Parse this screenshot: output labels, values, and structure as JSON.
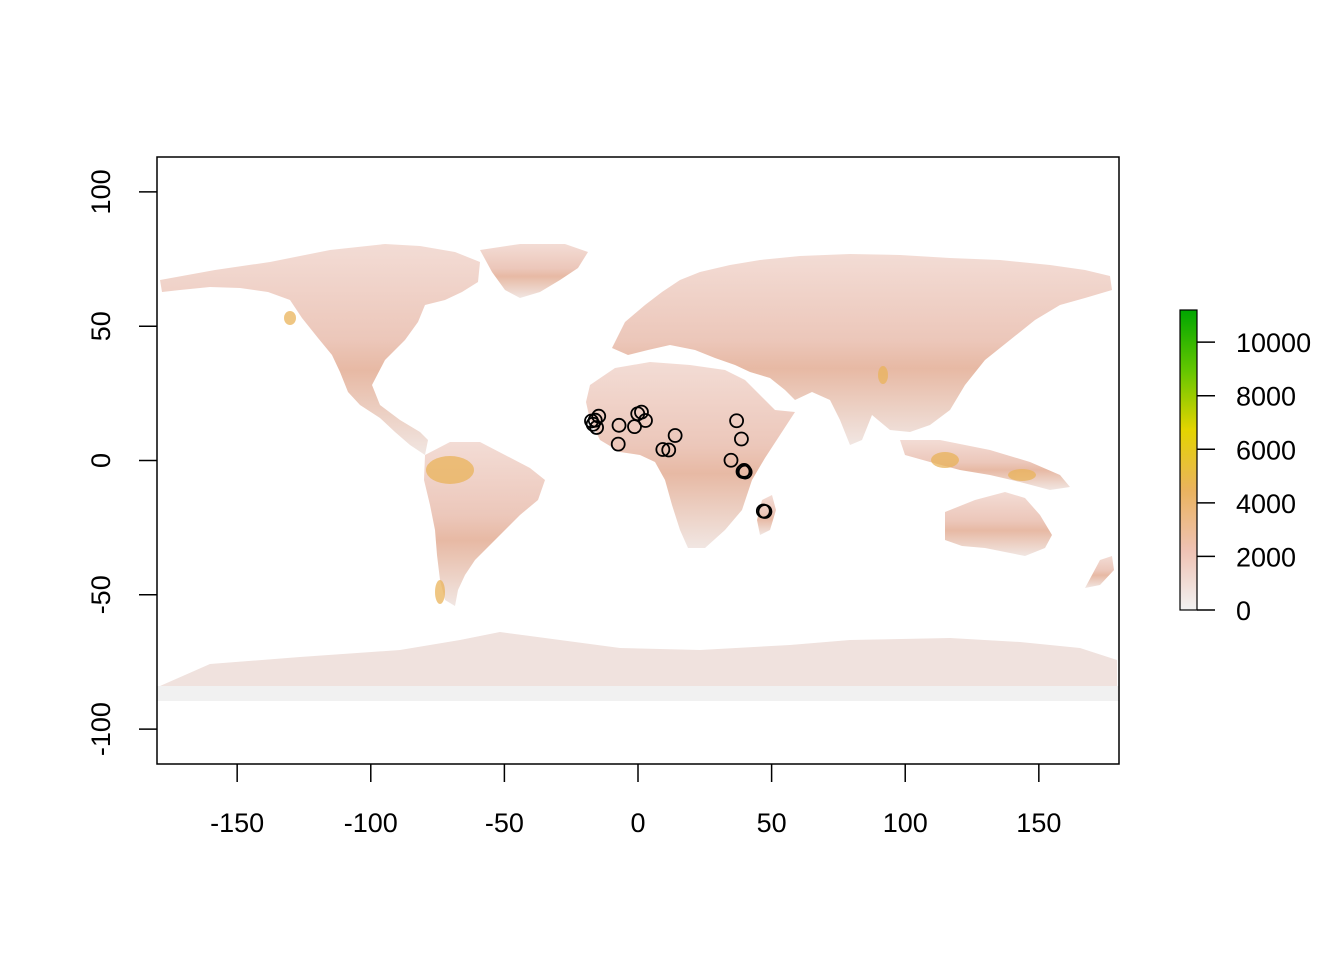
{
  "chart_data": {
    "type": "raster-map",
    "title": "",
    "xlabel": "",
    "ylabel": "",
    "xlim": [
      -180,
      180
    ],
    "ylim": [
      -113,
      113
    ],
    "x_ticks": [
      -150,
      -100,
      -50,
      0,
      50,
      100,
      150
    ],
    "y_ticks": [
      100,
      50,
      0,
      -50,
      -100
    ],
    "x_tick_labels": [
      "-150",
      "-100",
      "-50",
      "0",
      "50",
      "100",
      "150"
    ],
    "y_tick_labels": [
      "100",
      "50",
      "0",
      "-50",
      "-100"
    ],
    "legend": {
      "placement": "right",
      "range": [
        0,
        11200
      ],
      "ticks": [
        0,
        2000,
        4000,
        6000,
        8000,
        10000
      ],
      "tick_labels": [
        "0",
        "2000",
        "4000",
        "6000",
        "8000",
        "10000"
      ],
      "colors": [
        "#f2f2f2",
        "#efc2b3",
        "#eab35e",
        "#e4d400",
        "#63c600",
        "#00a600"
      ]
    },
    "background_color": "#f1f1f1",
    "land_color": "#efd6cf",
    "grid": false,
    "points": [
      {
        "x": -17.4,
        "y": 14.7
      },
      {
        "x": -16.8,
        "y": 13.5
      },
      {
        "x": -16.0,
        "y": 15.0
      },
      {
        "x": -15.5,
        "y": 12.3
      },
      {
        "x": -14.7,
        "y": 16.5
      },
      {
        "x": -7.1,
        "y": 13.1
      },
      {
        "x": -7.4,
        "y": 6.1
      },
      {
        "x": -1.3,
        "y": 12.6
      },
      {
        "x": -0.1,
        "y": 17.4
      },
      {
        "x": 1.3,
        "y": 18.0
      },
      {
        "x": 2.8,
        "y": 14.9
      },
      {
        "x": 9.3,
        "y": 4.1
      },
      {
        "x": 11.5,
        "y": 3.9
      },
      {
        "x": 13.9,
        "y": 9.3
      },
      {
        "x": 34.8,
        "y": 0.1
      },
      {
        "x": 36.9,
        "y": 14.8
      },
      {
        "x": 38.7,
        "y": 8.0
      },
      {
        "x": 39.3,
        "y": -4.1
      },
      {
        "x": 39.7,
        "y": -3.7
      },
      {
        "x": 40.1,
        "y": -4.3
      },
      {
        "x": 46.9,
        "y": -18.8
      },
      {
        "x": 47.5,
        "y": -19.0
      }
    ]
  }
}
